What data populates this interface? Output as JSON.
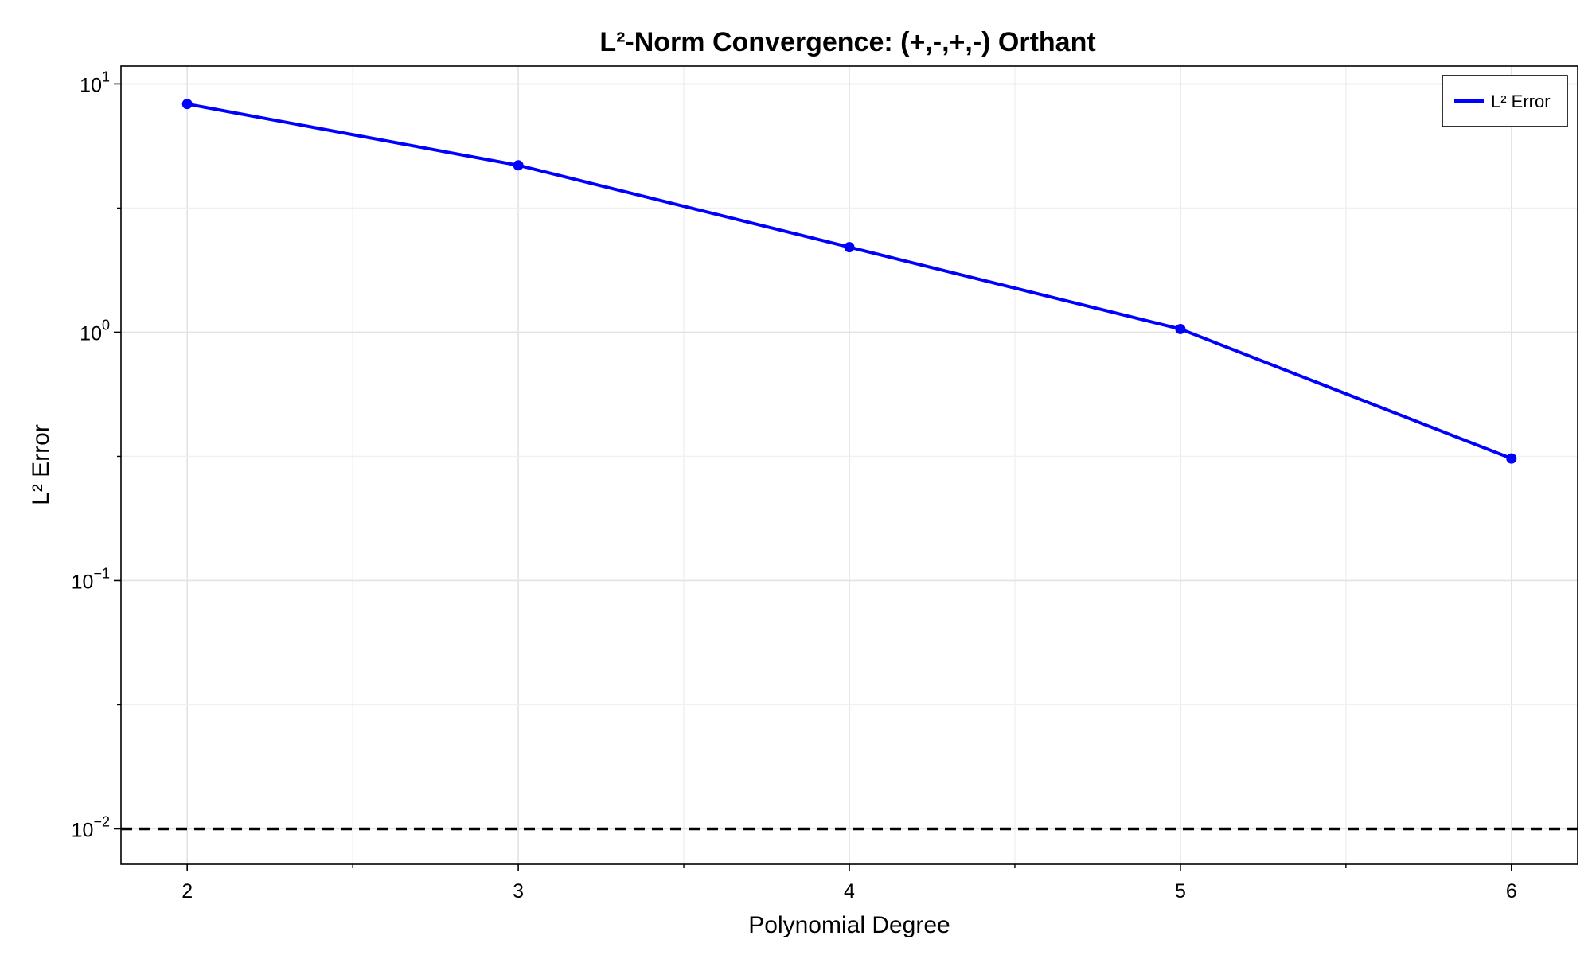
{
  "chart_data": {
    "type": "line",
    "title": "L²-Norm Convergence: (+,-,+,-) Orthant",
    "xlabel": "Polynomial Degree",
    "ylabel": "L² Error",
    "x": [
      2,
      3,
      4,
      5,
      6
    ],
    "x_ticks": [
      "2",
      "3",
      "4",
      "5",
      "6"
    ],
    "xlim": [
      1.8,
      6.2
    ],
    "yscale": "log",
    "ylim": [
      0.0072,
      11.8
    ],
    "y_ticks": [
      {
        "value": 10,
        "base": "10",
        "exp": "1"
      },
      {
        "value": 1,
        "base": "10",
        "exp": "0"
      },
      {
        "value": 0.1,
        "base": "10",
        "exp": "−1"
      },
      {
        "value": 0.01,
        "base": "10",
        "exp": "−2"
      }
    ],
    "series": [
      {
        "name": "L² Error",
        "color": "#0000ff",
        "values": [
          8.3,
          4.7,
          2.2,
          1.03,
          0.31
        ]
      }
    ],
    "reference_line": {
      "y": 0.01,
      "style": "dashed",
      "color": "#000000"
    },
    "grid": true,
    "legend_position": "top-right"
  }
}
